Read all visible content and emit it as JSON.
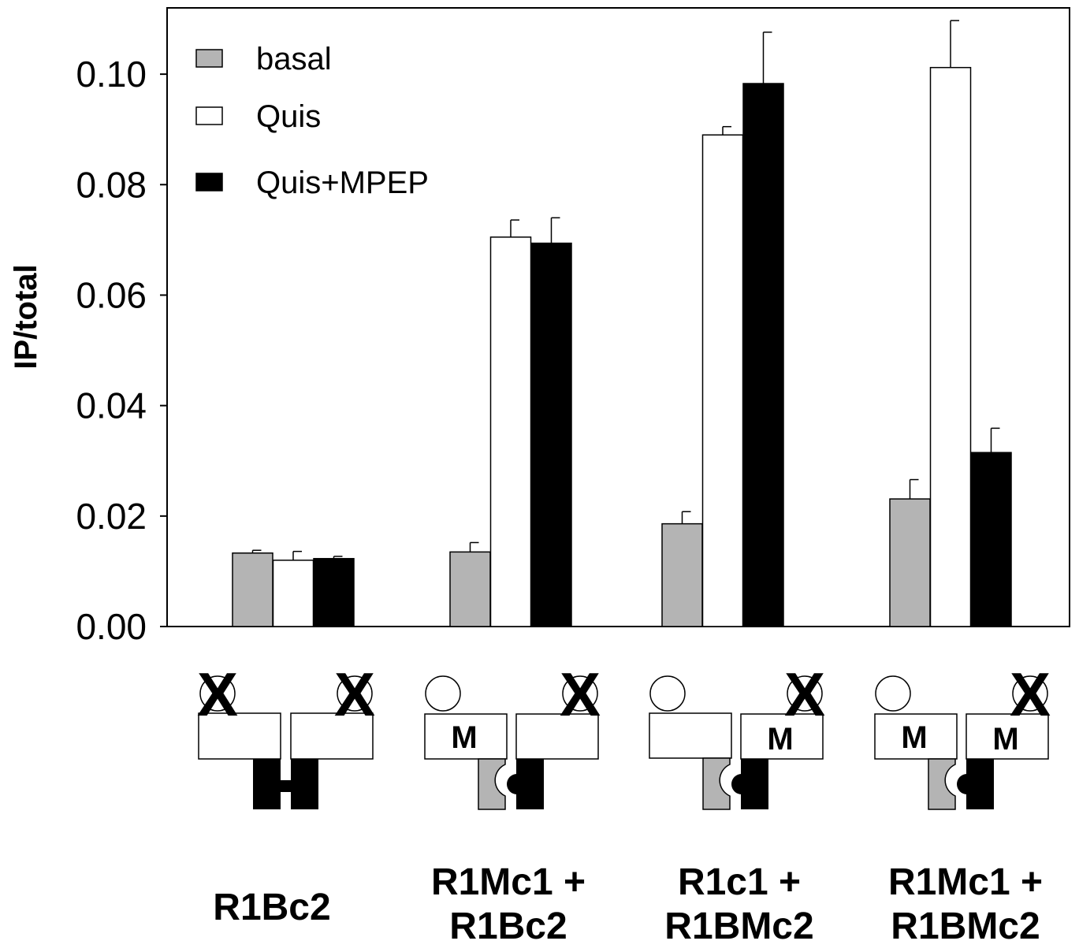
{
  "chart_data": {
    "type": "bar",
    "title": "",
    "xlabel": "",
    "ylabel": "IP/total",
    "ylim": [
      0,
      0.112
    ],
    "yticks": [
      "0.00",
      "0.02",
      "0.04",
      "0.06",
      "0.08",
      "0.10"
    ],
    "grid": false,
    "legend_position": "top-left",
    "categories": [
      "R1Bc2",
      "R1Mc1 + R1Bc2",
      "R1c1 + R1BMc2",
      "R1Mc1 + R1BMc2"
    ],
    "category_lines": [
      [
        "R1Bc2"
      ],
      [
        "R1Mc1 +",
        "R1Bc2"
      ],
      [
        "R1c1 +",
        "R1BMc2"
      ],
      [
        "R1Mc1 +",
        "R1BMc2"
      ]
    ],
    "series": [
      {
        "name": "basal",
        "color": "#b4b4b4",
        "values": [
          0.0133,
          0.0135,
          0.0186,
          0.0231
        ],
        "errors": [
          0.0005,
          0.0017,
          0.0022,
          0.0035
        ]
      },
      {
        "name": "Quis",
        "color": "#ffffff",
        "values": [
          0.012,
          0.0705,
          0.089,
          0.1012
        ],
        "errors": [
          0.0016,
          0.0031,
          0.0015,
          0.0085
        ]
      },
      {
        "name": "Quis+MPEP",
        "color": "#000000",
        "values": [
          0.0123,
          0.0694,
          0.0983,
          0.0315
        ],
        "errors": [
          0.0004,
          0.0046,
          0.0093,
          0.0044
        ]
      }
    ],
    "diagram_m_labels": [
      [
        false,
        false
      ],
      [
        true,
        false
      ],
      [
        false,
        true
      ],
      [
        true,
        true
      ]
    ],
    "diagram_m_text": "M",
    "diagram_x_text": "X"
  }
}
